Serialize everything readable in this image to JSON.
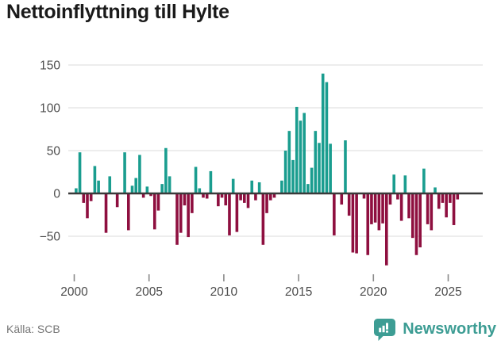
{
  "title": "Nettoinflyttning till Hylte",
  "source": "Källa: SCB",
  "logo": {
    "text": "Newsworthy"
  },
  "colors": {
    "positive": "#1a9d8f",
    "negative": "#8e0f3f",
    "grid": "#e7e7e7",
    "zero_line": "#3a3a3a",
    "axis_text": "#4d4d4d",
    "title_text": "#1a1a1a",
    "source_text": "#767676",
    "logo_teal": "#3d9d94",
    "tick": "#8a8a8a"
  },
  "chart_data": {
    "type": "bar",
    "title": "Nettoinflyttning till Hylte",
    "xlabel": "",
    "ylabel": "",
    "frequency": "quarterly",
    "x_start": "2000 Q1",
    "x_end": "2025 Q3",
    "ylim": [
      -90,
      160
    ],
    "yticks": [
      150,
      100,
      50,
      0,
      -50
    ],
    "ytick_labels": [
      "150",
      "100",
      "50",
      "0",
      "−50"
    ],
    "xticks": [
      2000,
      2005,
      2010,
      2015,
      2020,
      2025
    ],
    "grid": true,
    "legend": "none",
    "positive_color": "#1a9d8f",
    "negative_color": "#8e0f3f",
    "values": [
      6,
      48,
      -11,
      -29,
      -9,
      32,
      15,
      0,
      -46,
      20,
      0,
      -16,
      0,
      48,
      -43,
      9,
      18,
      45,
      -5,
      8,
      -3,
      -42,
      -20,
      11,
      53,
      20,
      0,
      -60,
      -46,
      -14,
      -51,
      -23,
      31,
      6,
      -5,
      -6,
      26,
      0,
      -15,
      -5,
      -14,
      -49,
      17,
      -45,
      -8,
      -11,
      -17,
      15,
      -8,
      13,
      -60,
      -23,
      -8,
      -5,
      0,
      15,
      50,
      73,
      39,
      101,
      85,
      94,
      11,
      30,
      73,
      59,
      140,
      130,
      58,
      -49,
      0,
      -13,
      62,
      -26,
      -69,
      -70,
      0,
      -6,
      -72,
      -36,
      -34,
      -43,
      -35,
      -84,
      -13,
      22,
      -7,
      -32,
      21,
      -29,
      -52,
      -72,
      -63,
      29,
      -36,
      -43,
      7,
      -18,
      -11,
      -28,
      -11,
      -37,
      -7
    ]
  }
}
